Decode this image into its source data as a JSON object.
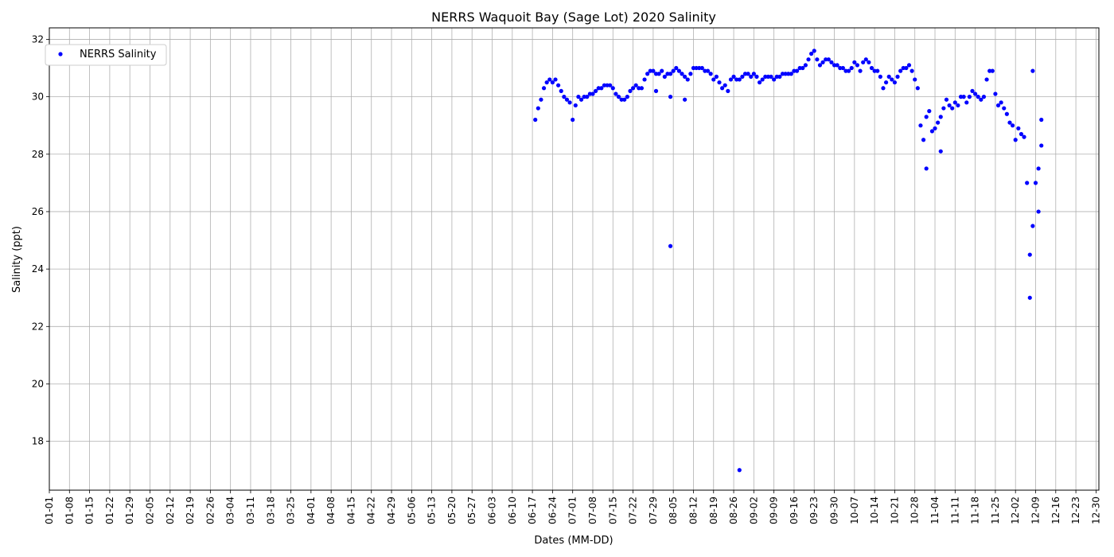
{
  "chart_data": {
    "type": "scatter",
    "title": "NERRS Waquoit Bay (Sage Lot) 2020 Salinity",
    "xlabel": "Dates (MM-DD)",
    "ylabel": "Salinity (ppt)",
    "x_ticks": [
      "01-01",
      "01-08",
      "01-15",
      "01-22",
      "01-29",
      "02-05",
      "02-12",
      "02-19",
      "02-26",
      "03-04",
      "03-11",
      "03-18",
      "03-25",
      "04-01",
      "04-08",
      "04-15",
      "04-22",
      "04-29",
      "05-06",
      "05-13",
      "05-20",
      "05-27",
      "06-03",
      "06-10",
      "06-17",
      "06-24",
      "07-01",
      "07-08",
      "07-15",
      "07-22",
      "07-29",
      "08-05",
      "08-12",
      "08-19",
      "08-26",
      "09-02",
      "09-09",
      "09-16",
      "09-23",
      "09-30",
      "10-07",
      "10-14",
      "10-21",
      "10-28",
      "11-04",
      "11-11",
      "11-18",
      "11-25",
      "12-02",
      "12-09",
      "12-16",
      "12-23",
      "12-30"
    ],
    "y_ticks": [
      18,
      20,
      22,
      24,
      26,
      28,
      30,
      32
    ],
    "xlim": [
      "2020-01-01",
      "2020-12-31"
    ],
    "ylim": [
      16.3,
      32.4
    ],
    "grid": true,
    "legend_position": "upper-left",
    "series": [
      {
        "name": "NERRS Salinity",
        "color": "#0000ff",
        "marker": "dot",
        "points": [
          [
            "2020-06-18",
            29.2
          ],
          [
            "2020-06-19",
            29.6
          ],
          [
            "2020-06-20",
            29.9
          ],
          [
            "2020-06-21",
            30.3
          ],
          [
            "2020-06-22",
            30.5
          ],
          [
            "2020-06-23",
            30.6
          ],
          [
            "2020-06-24",
            30.5
          ],
          [
            "2020-06-25",
            30.6
          ],
          [
            "2020-06-26",
            30.4
          ],
          [
            "2020-06-27",
            30.2
          ],
          [
            "2020-06-28",
            30.0
          ],
          [
            "2020-06-29",
            29.9
          ],
          [
            "2020-06-30",
            29.8
          ],
          [
            "2020-07-01",
            29.2
          ],
          [
            "2020-07-02",
            29.7
          ],
          [
            "2020-07-03",
            30.0
          ],
          [
            "2020-07-04",
            29.9
          ],
          [
            "2020-07-05",
            30.0
          ],
          [
            "2020-07-06",
            30.0
          ],
          [
            "2020-07-07",
            30.1
          ],
          [
            "2020-07-08",
            30.1
          ],
          [
            "2020-07-09",
            30.2
          ],
          [
            "2020-07-10",
            30.3
          ],
          [
            "2020-07-11",
            30.3
          ],
          [
            "2020-07-12",
            30.4
          ],
          [
            "2020-07-13",
            30.4
          ],
          [
            "2020-07-14",
            30.4
          ],
          [
            "2020-07-15",
            30.3
          ],
          [
            "2020-07-16",
            30.1
          ],
          [
            "2020-07-17",
            30.0
          ],
          [
            "2020-07-18",
            29.9
          ],
          [
            "2020-07-19",
            29.9
          ],
          [
            "2020-07-20",
            30.0
          ],
          [
            "2020-07-21",
            30.2
          ],
          [
            "2020-07-22",
            30.3
          ],
          [
            "2020-07-23",
            30.4
          ],
          [
            "2020-07-24",
            30.3
          ],
          [
            "2020-07-25",
            30.3
          ],
          [
            "2020-07-26",
            30.6
          ],
          [
            "2020-07-27",
            30.8
          ],
          [
            "2020-07-28",
            30.9
          ],
          [
            "2020-07-29",
            30.9
          ],
          [
            "2020-07-30",
            30.8
          ],
          [
            "2020-07-31",
            30.8
          ],
          [
            "2020-08-01",
            30.9
          ],
          [
            "2020-08-02",
            30.7
          ],
          [
            "2020-08-03",
            30.8
          ],
          [
            "2020-08-04",
            30.8
          ],
          [
            "2020-08-05",
            30.9
          ],
          [
            "2020-08-06",
            31.0
          ],
          [
            "2020-08-07",
            30.9
          ],
          [
            "2020-08-08",
            30.8
          ],
          [
            "2020-08-09",
            30.7
          ],
          [
            "2020-08-10",
            30.6
          ],
          [
            "2020-08-11",
            30.8
          ],
          [
            "2020-08-12",
            31.0
          ],
          [
            "2020-08-13",
            31.0
          ],
          [
            "2020-08-14",
            31.0
          ],
          [
            "2020-08-15",
            31.0
          ],
          [
            "2020-08-16",
            30.9
          ],
          [
            "2020-08-17",
            30.9
          ],
          [
            "2020-08-18",
            30.8
          ],
          [
            "2020-08-19",
            30.6
          ],
          [
            "2020-08-20",
            30.7
          ],
          [
            "2020-08-21",
            30.5
          ],
          [
            "2020-08-22",
            30.3
          ],
          [
            "2020-08-23",
            30.4
          ],
          [
            "2020-08-24",
            30.2
          ],
          [
            "2020-08-25",
            30.6
          ],
          [
            "2020-08-26",
            30.7
          ],
          [
            "2020-08-27",
            30.6
          ],
          [
            "2020-08-28",
            30.6
          ],
          [
            "2020-08-29",
            30.7
          ],
          [
            "2020-08-30",
            30.8
          ],
          [
            "2020-08-31",
            30.8
          ],
          [
            "2020-09-01",
            30.7
          ],
          [
            "2020-09-02",
            30.8
          ],
          [
            "2020-09-03",
            30.7
          ],
          [
            "2020-09-04",
            30.5
          ],
          [
            "2020-09-05",
            30.6
          ],
          [
            "2020-09-06",
            30.7
          ],
          [
            "2020-09-07",
            30.7
          ],
          [
            "2020-09-08",
            30.7
          ],
          [
            "2020-09-09",
            30.6
          ],
          [
            "2020-09-10",
            30.7
          ],
          [
            "2020-09-11",
            30.7
          ],
          [
            "2020-09-12",
            30.8
          ],
          [
            "2020-09-13",
            30.8
          ],
          [
            "2020-09-14",
            30.8
          ],
          [
            "2020-09-15",
            30.8
          ],
          [
            "2020-09-16",
            30.9
          ],
          [
            "2020-09-17",
            30.9
          ],
          [
            "2020-09-18",
            31.0
          ],
          [
            "2020-09-19",
            31.0
          ],
          [
            "2020-09-20",
            31.1
          ],
          [
            "2020-09-21",
            31.3
          ],
          [
            "2020-09-22",
            31.5
          ],
          [
            "2020-09-23",
            31.6
          ],
          [
            "2020-09-24",
            31.3
          ],
          [
            "2020-09-25",
            31.1
          ],
          [
            "2020-09-26",
            31.2
          ],
          [
            "2020-09-27",
            31.3
          ],
          [
            "2020-09-28",
            31.3
          ],
          [
            "2020-09-29",
            31.2
          ],
          [
            "2020-09-30",
            31.1
          ],
          [
            "2020-10-01",
            31.1
          ],
          [
            "2020-10-02",
            31.0
          ],
          [
            "2020-10-03",
            31.0
          ],
          [
            "2020-10-04",
            30.9
          ],
          [
            "2020-10-05",
            30.9
          ],
          [
            "2020-10-06",
            31.0
          ],
          [
            "2020-10-07",
            31.2
          ],
          [
            "2020-10-08",
            31.1
          ],
          [
            "2020-10-09",
            30.9
          ],
          [
            "2020-10-10",
            31.2
          ],
          [
            "2020-10-11",
            31.3
          ],
          [
            "2020-10-12",
            31.2
          ],
          [
            "2020-10-13",
            31.0
          ],
          [
            "2020-10-14",
            30.9
          ],
          [
            "2020-10-15",
            30.9
          ],
          [
            "2020-10-16",
            30.7
          ],
          [
            "2020-10-17",
            30.3
          ],
          [
            "2020-10-18",
            30.5
          ],
          [
            "2020-10-19",
            30.7
          ],
          [
            "2020-10-20",
            30.6
          ],
          [
            "2020-10-21",
            30.5
          ],
          [
            "2020-10-22",
            30.7
          ],
          [
            "2020-10-23",
            30.9
          ],
          [
            "2020-10-24",
            31.0
          ],
          [
            "2020-10-25",
            31.0
          ],
          [
            "2020-10-26",
            31.1
          ],
          [
            "2020-10-27",
            30.9
          ],
          [
            "2020-10-28",
            30.6
          ],
          [
            "2020-10-29",
            30.3
          ],
          [
            "2020-10-30",
            29.0
          ],
          [
            "2020-10-31",
            28.5
          ],
          [
            "2020-11-01",
            29.3
          ],
          [
            "2020-11-02",
            29.5
          ],
          [
            "2020-11-03",
            28.8
          ],
          [
            "2020-11-04",
            28.9
          ],
          [
            "2020-11-05",
            29.1
          ],
          [
            "2020-11-06",
            29.3
          ],
          [
            "2020-11-07",
            29.6
          ],
          [
            "2020-11-08",
            29.9
          ],
          [
            "2020-11-09",
            29.7
          ],
          [
            "2020-11-10",
            29.6
          ],
          [
            "2020-11-11",
            29.8
          ],
          [
            "2020-11-12",
            29.7
          ],
          [
            "2020-11-13",
            30.0
          ],
          [
            "2020-11-14",
            30.0
          ],
          [
            "2020-11-15",
            29.8
          ],
          [
            "2020-11-16",
            30.0
          ],
          [
            "2020-11-17",
            30.2
          ],
          [
            "2020-11-18",
            30.1
          ],
          [
            "2020-11-19",
            30.0
          ],
          [
            "2020-11-20",
            29.9
          ],
          [
            "2020-11-21",
            30.0
          ],
          [
            "2020-11-22",
            30.6
          ],
          [
            "2020-11-23",
            30.9
          ],
          [
            "2020-11-24",
            30.9
          ],
          [
            "2020-11-25",
            30.1
          ],
          [
            "2020-11-26",
            29.7
          ],
          [
            "2020-11-27",
            29.8
          ],
          [
            "2020-11-28",
            29.6
          ],
          [
            "2020-11-29",
            29.4
          ],
          [
            "2020-11-30",
            29.1
          ],
          [
            "2020-12-01",
            29.0
          ],
          [
            "2020-12-02",
            28.5
          ],
          [
            "2020-12-03",
            28.9
          ],
          [
            "2020-12-04",
            28.7
          ],
          [
            "2020-12-05",
            28.6
          ],
          [
            "2020-12-06",
            27.0
          ],
          [
            "2020-12-07",
            24.5
          ],
          [
            "2020-12-08",
            25.5
          ],
          [
            "2020-12-09",
            27.0
          ],
          [
            "2020-12-10",
            27.5
          ],
          [
            "2020-12-11",
            28.3
          ],
          [
            "2020-08-04",
            24.8
          ],
          [
            "2020-08-28",
            17.0
          ],
          [
            "2020-08-09",
            29.9
          ],
          [
            "2020-08-04",
            30.0
          ],
          [
            "2020-07-30",
            30.2
          ],
          [
            "2020-12-10",
            26.0
          ],
          [
            "2020-11-06",
            28.1
          ],
          [
            "2020-11-01",
            27.5
          ],
          [
            "2020-12-07",
            23.0
          ],
          [
            "2020-12-11",
            29.2
          ],
          [
            "2020-12-08",
            30.9
          ]
        ]
      }
    ]
  }
}
